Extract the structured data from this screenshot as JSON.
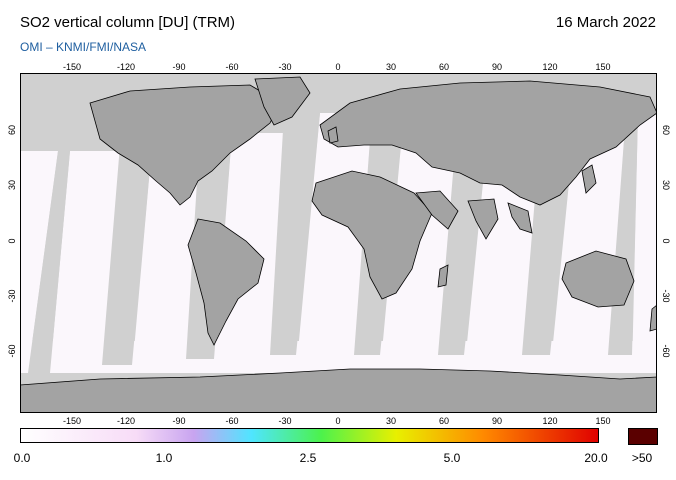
{
  "header": {
    "title": "SO2 vertical column [DU] (TRM)",
    "date": "16 March 2022",
    "credit": "OMI  –  KNMI/FMI/NASA",
    "credit_color": "#1f5fa0"
  },
  "map": {
    "lon_ticks": [
      "-150",
      "-120",
      "-90",
      "-60",
      "-30",
      "0",
      "30",
      "60",
      "90",
      "120",
      "150"
    ],
    "lat_ticks": [
      "60",
      "30",
      "0",
      "-30",
      "-60"
    ],
    "no_data_color": "#d0d0d0",
    "land_color": "#a3a3a3",
    "swath_color": "#fbf7fc"
  },
  "colorbar": {
    "labels": [
      "0.0",
      "1.0",
      "2.5",
      "5.0",
      "20.0"
    ],
    "over_label": ">50",
    "over_color": "#5a0000"
  }
}
